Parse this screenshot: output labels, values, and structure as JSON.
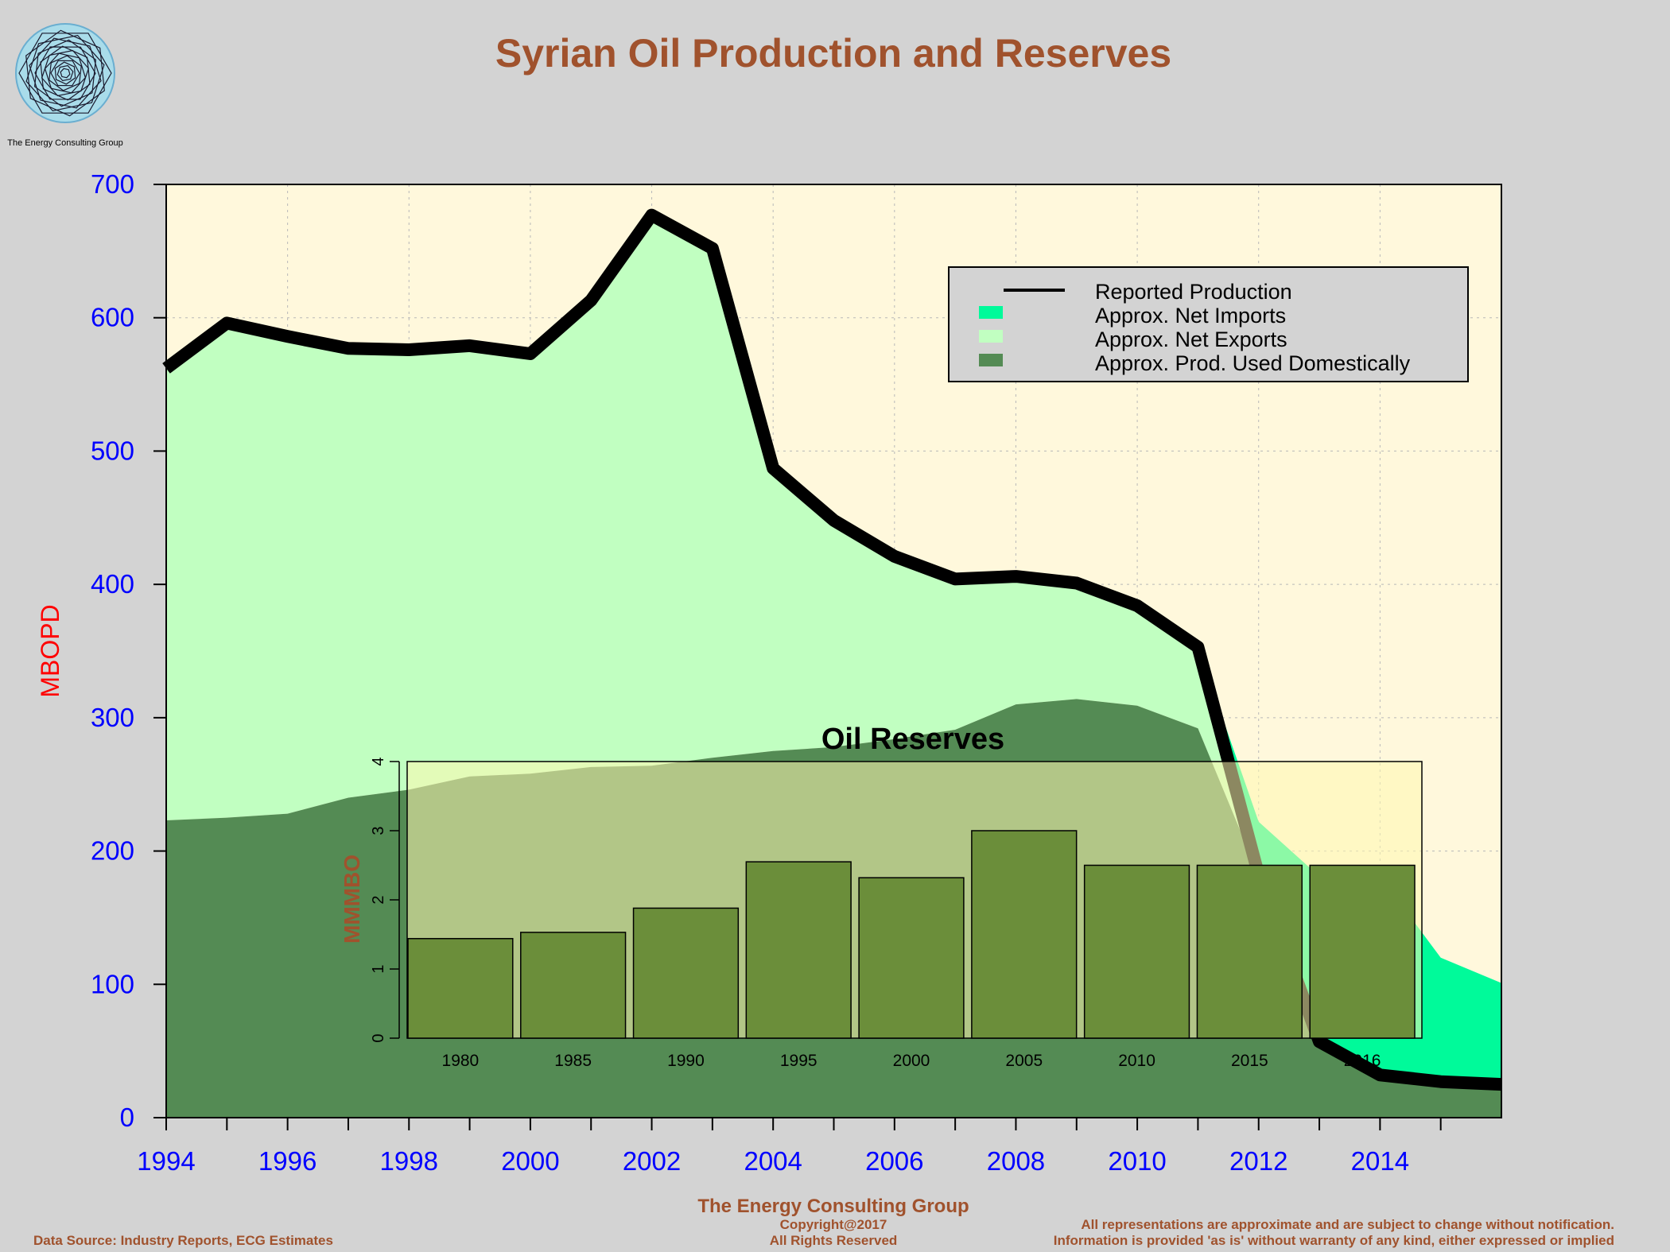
{
  "header": {
    "title": "Syrian Oil Production and Reserves",
    "logo_caption": "The Energy Consulting Group"
  },
  "footer": {
    "company": "The Energy Consulting Group",
    "copyright": "Copyright@2017",
    "rights": "All Rights Reserved",
    "source": "Data Source: Industry Reports, ECG Estimates",
    "disclaimer_1": "All representations are approximate and are subject to change without notification.",
    "disclaimer_2": "Information is provided 'as is' without warranty of any kind, either expressed or implied"
  },
  "colors": {
    "page_bg": "#d3d3d3",
    "plot_bg": "#fff8dc",
    "net_imports": "#00fa9a",
    "net_exports": "#c1ffc1",
    "domestic": "#548b54",
    "production_line": "#000000",
    "title": "#a0522d",
    "axis_ticks": "#0000ff",
    "ylabel": "#ff0000",
    "reserve_bar": "#6b8e3a",
    "inset_bg": "#fff8b0"
  },
  "chart_data": [
    {
      "type": "area",
      "title": "",
      "ylabel": "MBOPD",
      "xlabel": "",
      "xlim": [
        1994,
        2016
      ],
      "ylim": [
        0,
        700
      ],
      "x_ticks": [
        1994,
        1996,
        1998,
        2000,
        2002,
        2004,
        2006,
        2008,
        2010,
        2012,
        2014
      ],
      "y_ticks": [
        0,
        100,
        200,
        300,
        400,
        500,
        600,
        700
      ],
      "grid": true,
      "legend_position": "top-right",
      "x": [
        1994,
        1995,
        1996,
        1997,
        1998,
        1999,
        2000,
        2001,
        2002,
        2003,
        2004,
        2005,
        2006,
        2007,
        2008,
        2009,
        2010,
        2011,
        2012,
        2013,
        2014,
        2015,
        2016
      ],
      "series": [
        {
          "name": "Reported Production",
          "style": "line",
          "values": [
            562,
            596,
            586,
            577,
            576,
            579,
            573,
            613,
            677,
            652,
            487,
            448,
            421,
            404,
            406,
            401,
            384,
            353,
            182,
            57,
            32,
            27,
            25
          ]
        },
        {
          "name": "Approx. Net Imports",
          "style": "area",
          "values": [
            0,
            0,
            0,
            0,
            0,
            0,
            0,
            0,
            0,
            0,
            0,
            0,
            0,
            0,
            0,
            0,
            0,
            0,
            40,
            124,
            149,
            93,
            76
          ]
        },
        {
          "name": "Approx. Net Exports",
          "style": "area",
          "values": [
            339,
            371,
            358,
            337,
            330,
            323,
            315,
            350,
            413,
            382,
            212,
            170,
            137,
            113,
            96,
            87,
            75,
            61,
            0,
            0,
            0,
            0,
            0
          ]
        },
        {
          "name": "Approx. Prod. Used Domestically",
          "style": "area",
          "values": [
            223,
            225,
            228,
            240,
            246,
            256,
            258,
            263,
            264,
            270,
            275,
            278,
            284,
            291,
            310,
            314,
            309,
            292,
            182,
            57,
            32,
            27,
            25
          ]
        }
      ]
    },
    {
      "type": "bar",
      "title": "Oil Reserves",
      "ylabel": "MMMBO",
      "xlabel": "",
      "ylim": [
        0,
        4
      ],
      "y_ticks": [
        0,
        1,
        2,
        3,
        4
      ],
      "categories": [
        "1980",
        "1985",
        "1990",
        "1995",
        "2000",
        "2005",
        "2010",
        "2015",
        "2016"
      ],
      "values": [
        1.44,
        1.53,
        1.88,
        2.55,
        2.32,
        3.0,
        2.5,
        2.5,
        2.5
      ]
    }
  ]
}
